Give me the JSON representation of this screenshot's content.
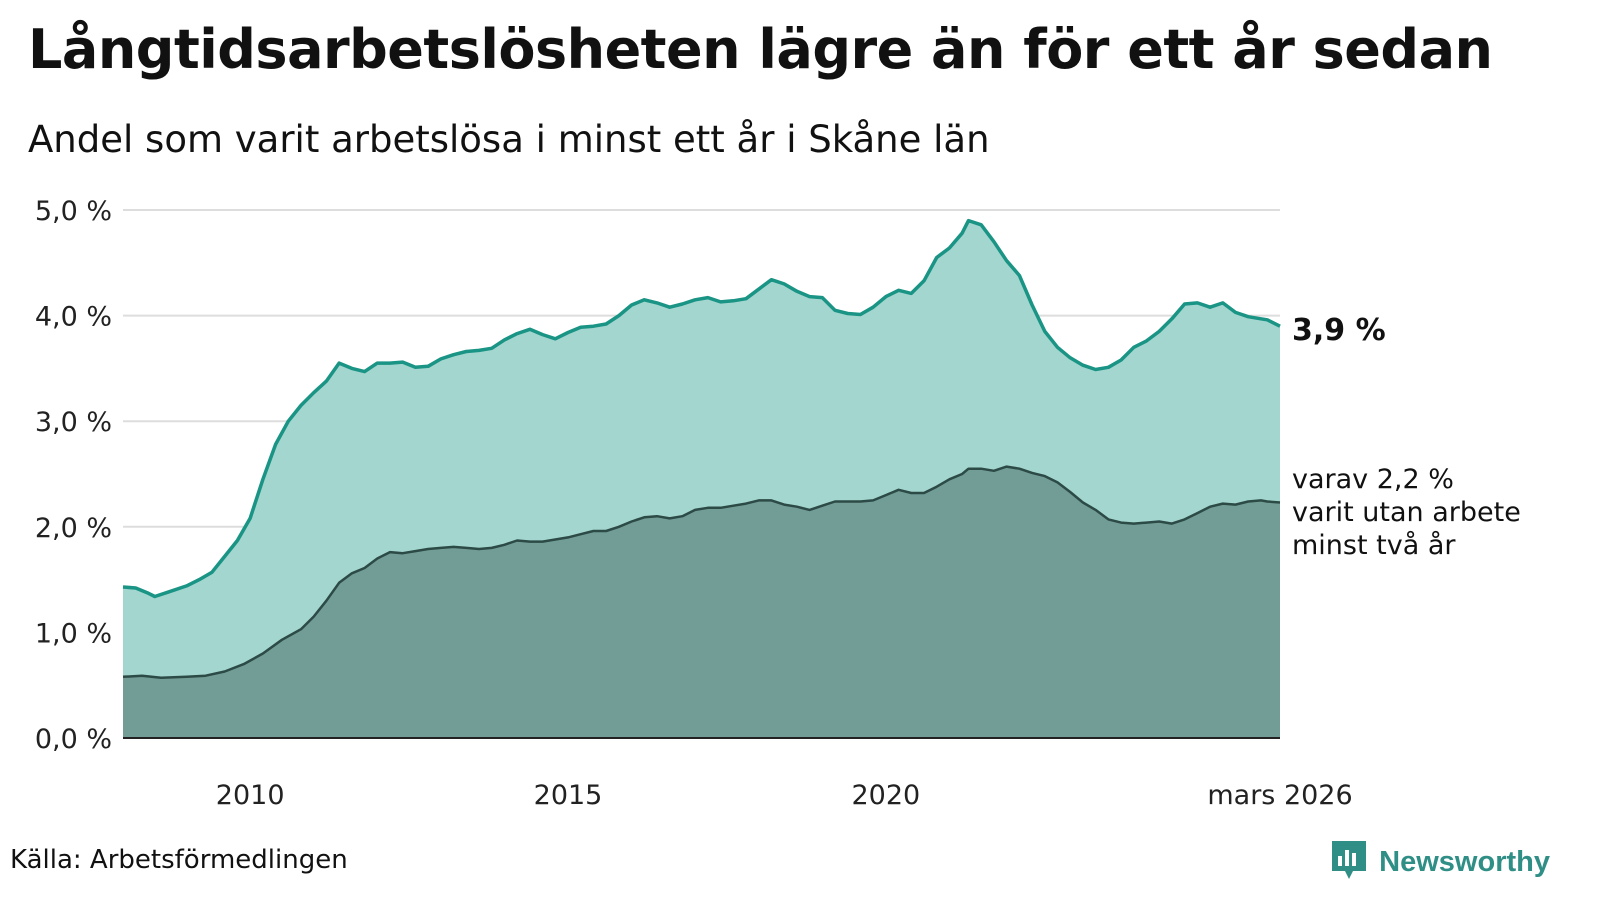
{
  "title": "Långtidsarbetslösheten lägre än för ett år sedan",
  "subtitle": "Andel som varit arbetslösa i minst ett år i Skåne län",
  "source": "Källa: Arbetsförmedlingen",
  "brand": {
    "name": "Newsworthy",
    "icon": "newsworthy-logo-icon"
  },
  "colors": {
    "upper_fill": "#a3d6cf",
    "upper_line": "#1a9485",
    "lower_fill": "#729d97",
    "lower_line": "#2c4a46",
    "grid": "#dddddd"
  },
  "chart_data": {
    "type": "area",
    "title": "Långtidsarbetslösheten lägre än för ett år sedan",
    "ylabel": "",
    "xlabel": "",
    "ylim": [
      0,
      5
    ],
    "xlim": [
      2008.0,
      2026.2
    ],
    "y_ticks": [
      0,
      1,
      2,
      3,
      4,
      5
    ],
    "y_tick_labels": [
      "0,0 %",
      "1,0 %",
      "2,0 %",
      "3,0 %",
      "4,0 %",
      "5,0 %"
    ],
    "x_ticks": [
      2010,
      2015,
      2020,
      2026.2
    ],
    "x_tick_labels": [
      "2010",
      "2015",
      "2020",
      "mars 2026"
    ],
    "end_label": "3,9 %",
    "annotation": [
      "varav 2,2 %",
      "varit utan arbete",
      "minst två år"
    ],
    "series": [
      {
        "name": "Arbetslösa minst ett år",
        "points": [
          [
            2008.0,
            1.43
          ],
          [
            2008.2,
            1.42
          ],
          [
            2008.4,
            1.37
          ],
          [
            2008.5,
            1.34
          ],
          [
            2008.7,
            1.38
          ],
          [
            2009.0,
            1.44
          ],
          [
            2009.2,
            1.5
          ],
          [
            2009.4,
            1.57
          ],
          [
            2009.6,
            1.72
          ],
          [
            2009.8,
            1.87
          ],
          [
            2010.0,
            2.08
          ],
          [
            2010.2,
            2.45
          ],
          [
            2010.4,
            2.78
          ],
          [
            2010.6,
            3.0
          ],
          [
            2010.8,
            3.15
          ],
          [
            2011.0,
            3.27
          ],
          [
            2011.2,
            3.38
          ],
          [
            2011.4,
            3.55
          ],
          [
            2011.6,
            3.5
          ],
          [
            2011.8,
            3.47
          ],
          [
            2012.0,
            3.55
          ],
          [
            2012.2,
            3.55
          ],
          [
            2012.4,
            3.56
          ],
          [
            2012.6,
            3.51
          ],
          [
            2012.8,
            3.52
          ],
          [
            2013.0,
            3.59
          ],
          [
            2013.2,
            3.63
          ],
          [
            2013.4,
            3.66
          ],
          [
            2013.6,
            3.67
          ],
          [
            2013.8,
            3.69
          ],
          [
            2014.0,
            3.77
          ],
          [
            2014.2,
            3.83
          ],
          [
            2014.4,
            3.87
          ],
          [
            2014.6,
            3.82
          ],
          [
            2014.8,
            3.78
          ],
          [
            2015.0,
            3.84
          ],
          [
            2015.2,
            3.89
          ],
          [
            2015.4,
            3.9
          ],
          [
            2015.6,
            3.92
          ],
          [
            2015.8,
            4.0
          ],
          [
            2016.0,
            4.1
          ],
          [
            2016.2,
            4.15
          ],
          [
            2016.4,
            4.12
          ],
          [
            2016.6,
            4.08
          ],
          [
            2016.8,
            4.11
          ],
          [
            2017.0,
            4.15
          ],
          [
            2017.2,
            4.17
          ],
          [
            2017.4,
            4.13
          ],
          [
            2017.6,
            4.14
          ],
          [
            2017.8,
            4.16
          ],
          [
            2018.0,
            4.25
          ],
          [
            2018.2,
            4.34
          ],
          [
            2018.4,
            4.3
          ],
          [
            2018.6,
            4.23
          ],
          [
            2018.8,
            4.18
          ],
          [
            2019.0,
            4.17
          ],
          [
            2019.2,
            4.05
          ],
          [
            2019.4,
            4.02
          ],
          [
            2019.6,
            4.01
          ],
          [
            2019.8,
            4.08
          ],
          [
            2020.0,
            4.18
          ],
          [
            2020.2,
            4.24
          ],
          [
            2020.4,
            4.21
          ],
          [
            2020.6,
            4.33
          ],
          [
            2020.8,
            4.55
          ],
          [
            2021.0,
            4.64
          ],
          [
            2021.2,
            4.78
          ],
          [
            2021.3,
            4.9
          ],
          [
            2021.5,
            4.86
          ],
          [
            2021.7,
            4.7
          ],
          [
            2021.9,
            4.52
          ],
          [
            2022.1,
            4.38
          ],
          [
            2022.3,
            4.1
          ],
          [
            2022.5,
            3.85
          ],
          [
            2022.7,
            3.7
          ],
          [
            2022.9,
            3.6
          ],
          [
            2023.1,
            3.53
          ],
          [
            2023.3,
            3.49
          ],
          [
            2023.5,
            3.51
          ],
          [
            2023.7,
            3.58
          ],
          [
            2023.9,
            3.7
          ],
          [
            2024.1,
            3.76
          ],
          [
            2024.3,
            3.85
          ],
          [
            2024.5,
            3.97
          ],
          [
            2024.7,
            4.11
          ],
          [
            2024.9,
            4.12
          ],
          [
            2025.1,
            4.08
          ],
          [
            2025.3,
            4.12
          ],
          [
            2025.5,
            4.03
          ],
          [
            2025.7,
            3.99
          ],
          [
            2025.9,
            3.97
          ],
          [
            2026.0,
            3.96
          ],
          [
            2026.2,
            3.9
          ]
        ]
      },
      {
        "name": "Varav utan arbete minst två år",
        "points": [
          [
            2008.0,
            0.58
          ],
          [
            2008.3,
            0.59
          ],
          [
            2008.6,
            0.57
          ],
          [
            2009.0,
            0.58
          ],
          [
            2009.3,
            0.59
          ],
          [
            2009.6,
            0.63
          ],
          [
            2009.9,
            0.7
          ],
          [
            2010.2,
            0.8
          ],
          [
            2010.5,
            0.93
          ],
          [
            2010.8,
            1.03
          ],
          [
            2011.0,
            1.15
          ],
          [
            2011.2,
            1.3
          ],
          [
            2011.4,
            1.47
          ],
          [
            2011.6,
            1.56
          ],
          [
            2011.8,
            1.61
          ],
          [
            2012.0,
            1.7
          ],
          [
            2012.2,
            1.76
          ],
          [
            2012.4,
            1.75
          ],
          [
            2012.6,
            1.77
          ],
          [
            2012.8,
            1.79
          ],
          [
            2013.0,
            1.8
          ],
          [
            2013.2,
            1.81
          ],
          [
            2013.4,
            1.8
          ],
          [
            2013.6,
            1.79
          ],
          [
            2013.8,
            1.8
          ],
          [
            2014.0,
            1.83
          ],
          [
            2014.2,
            1.87
          ],
          [
            2014.4,
            1.86
          ],
          [
            2014.6,
            1.86
          ],
          [
            2014.8,
            1.88
          ],
          [
            2015.0,
            1.9
          ],
          [
            2015.2,
            1.93
          ],
          [
            2015.4,
            1.96
          ],
          [
            2015.6,
            1.96
          ],
          [
            2015.8,
            2.0
          ],
          [
            2016.0,
            2.05
          ],
          [
            2016.2,
            2.09
          ],
          [
            2016.4,
            2.1
          ],
          [
            2016.6,
            2.08
          ],
          [
            2016.8,
            2.1
          ],
          [
            2017.0,
            2.16
          ],
          [
            2017.2,
            2.18
          ],
          [
            2017.4,
            2.18
          ],
          [
            2017.6,
            2.2
          ],
          [
            2017.8,
            2.22
          ],
          [
            2018.0,
            2.25
          ],
          [
            2018.2,
            2.25
          ],
          [
            2018.4,
            2.21
          ],
          [
            2018.6,
            2.19
          ],
          [
            2018.8,
            2.16
          ],
          [
            2019.0,
            2.2
          ],
          [
            2019.2,
            2.24
          ],
          [
            2019.4,
            2.24
          ],
          [
            2019.6,
            2.24
          ],
          [
            2019.8,
            2.25
          ],
          [
            2020.0,
            2.3
          ],
          [
            2020.2,
            2.35
          ],
          [
            2020.4,
            2.32
          ],
          [
            2020.6,
            2.32
          ],
          [
            2020.8,
            2.38
          ],
          [
            2021.0,
            2.45
          ],
          [
            2021.2,
            2.5
          ],
          [
            2021.3,
            2.55
          ],
          [
            2021.5,
            2.55
          ],
          [
            2021.7,
            2.53
          ],
          [
            2021.9,
            2.57
          ],
          [
            2022.1,
            2.55
          ],
          [
            2022.3,
            2.51
          ],
          [
            2022.5,
            2.48
          ],
          [
            2022.7,
            2.42
          ],
          [
            2022.9,
            2.33
          ],
          [
            2023.1,
            2.23
          ],
          [
            2023.3,
            2.16
          ],
          [
            2023.5,
            2.07
          ],
          [
            2023.7,
            2.04
          ],
          [
            2023.9,
            2.03
          ],
          [
            2024.1,
            2.04
          ],
          [
            2024.3,
            2.05
          ],
          [
            2024.5,
            2.03
          ],
          [
            2024.7,
            2.07
          ],
          [
            2024.9,
            2.13
          ],
          [
            2025.1,
            2.19
          ],
          [
            2025.3,
            2.22
          ],
          [
            2025.5,
            2.21
          ],
          [
            2025.7,
            2.24
          ],
          [
            2025.9,
            2.25
          ],
          [
            2026.0,
            2.24
          ],
          [
            2026.2,
            2.23
          ]
        ]
      }
    ]
  }
}
